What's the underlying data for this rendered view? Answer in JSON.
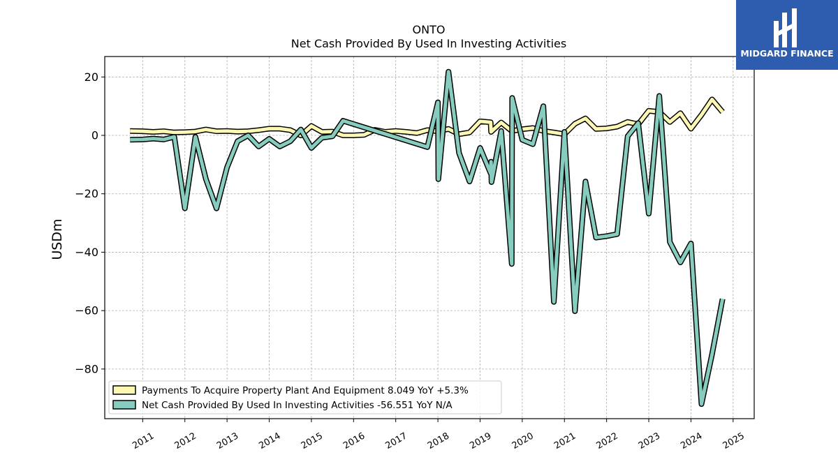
{
  "brand": {
    "name": "MIDGARD FINANCE",
    "color": "#2e5cae"
  },
  "chart_data": {
    "type": "line",
    "title": "ONTO",
    "subtitle": "Net Cash Provided By Used In Investing Activities",
    "xlabel": "",
    "ylabel": "USDm",
    "ylim": [
      -97,
      27
    ],
    "xlim": [
      2010.1,
      2025.5
    ],
    "yticks": [
      20,
      0,
      -20,
      -40,
      -60,
      -80
    ],
    "ytick_labels": [
      "20",
      "0",
      "−20",
      "−40",
      "−60",
      "−80"
    ],
    "xticks": [
      "2011",
      "2012",
      "2013",
      "2014",
      "2015",
      "2016",
      "2017",
      "2018",
      "2019",
      "2020",
      "2021",
      "2022",
      "2023",
      "2024",
      "2025"
    ],
    "grid": true,
    "legend_position": "lower-left",
    "series": [
      {
        "name": "Payments To Acquire Property Plant And Equipment",
        "legend_label": "Payments To Acquire Property Plant And Equipment  8.049 YoY +5.3%",
        "color": "#fcf8b4",
        "points": [
          [
            2010.7,
            1.5
          ],
          [
            2011.0,
            1.4
          ],
          [
            2011.25,
            1.2
          ],
          [
            2011.5,
            1.4
          ],
          [
            2011.75,
            1.0
          ],
          [
            2012.0,
            1.1
          ],
          [
            2012.25,
            1.3
          ],
          [
            2012.5,
            2.0
          ],
          [
            2012.75,
            1.4
          ],
          [
            2013.0,
            1.5
          ],
          [
            2013.25,
            1.3
          ],
          [
            2013.5,
            1.4
          ],
          [
            2013.75,
            1.8
          ],
          [
            2014.0,
            2.3
          ],
          [
            2014.25,
            2.3
          ],
          [
            2014.5,
            1.8
          ],
          [
            2014.75,
            0.0
          ],
          [
            2015.0,
            3.2
          ],
          [
            2015.25,
            1.2
          ],
          [
            2015.5,
            1.3
          ],
          [
            2015.75,
            0.0
          ],
          [
            2016.0,
            0.0
          ],
          [
            2016.25,
            0.2
          ],
          [
            2016.5,
            1.9
          ],
          [
            2016.75,
            1.2
          ],
          [
            2017.0,
            1.5
          ],
          [
            2017.25,
            1.2
          ],
          [
            2017.5,
            0.8
          ],
          [
            2017.75,
            1.8
          ],
          [
            2018.0,
            1.4
          ],
          [
            2018.25,
            2.2
          ],
          [
            2018.5,
            0.4
          ],
          [
            2018.75,
            1.0
          ],
          [
            2019.0,
            4.8
          ],
          [
            2019.25,
            4.5
          ],
          [
            2019.26,
            1.2
          ],
          [
            2019.5,
            4.4
          ],
          [
            2019.75,
            1.5
          ],
          [
            2020.0,
            2.1
          ],
          [
            2020.25,
            2.5
          ],
          [
            2020.5,
            1.5
          ],
          [
            2020.75,
            1.0
          ],
          [
            2021.0,
            0.4
          ],
          [
            2021.25,
            4.0
          ],
          [
            2021.5,
            5.8
          ],
          [
            2021.75,
            2.2
          ],
          [
            2022.0,
            2.4
          ],
          [
            2022.25,
            3.0
          ],
          [
            2022.5,
            4.6
          ],
          [
            2022.75,
            3.8
          ],
          [
            2023.0,
            8.4
          ],
          [
            2023.25,
            8.0
          ],
          [
            2023.5,
            4.6
          ],
          [
            2023.75,
            7.6
          ],
          [
            2024.0,
            2.3
          ],
          [
            2024.25,
            7.0
          ],
          [
            2024.5,
            12.3
          ],
          [
            2024.75,
            8.0
          ]
        ]
      },
      {
        "name": "Net Cash Provided By Used In Investing Activities",
        "legend_label": "Net Cash Provided By Used In Investing Activities  -56.551 YoY N/A",
        "color": "#86cdbf",
        "points": [
          [
            2010.7,
            -1.5
          ],
          [
            2011.0,
            -1.4
          ],
          [
            2011.25,
            -1.1
          ],
          [
            2011.5,
            -1.4
          ],
          [
            2011.75,
            -0.5
          ],
          [
            2012.0,
            -25.0
          ],
          [
            2012.25,
            -0.5
          ],
          [
            2012.5,
            -15.0
          ],
          [
            2012.75,
            -25.0
          ],
          [
            2013.0,
            -11.0
          ],
          [
            2013.25,
            -2.0
          ],
          [
            2013.5,
            0.0
          ],
          [
            2013.75,
            -3.8
          ],
          [
            2014.0,
            -1.2
          ],
          [
            2014.25,
            -3.8
          ],
          [
            2014.5,
            -2.0
          ],
          [
            2014.75,
            2.0
          ],
          [
            2015.0,
            -4.3
          ],
          [
            2015.25,
            -0.8
          ],
          [
            2015.5,
            -0.3
          ],
          [
            2015.75,
            5.0
          ],
          [
            2017.75,
            -4.0
          ],
          [
            2018.0,
            11.3
          ],
          [
            2018.01,
            -15.0
          ],
          [
            2018.25,
            21.8
          ],
          [
            2018.5,
            -6.0
          ],
          [
            2018.75,
            -15.8
          ],
          [
            2019.0,
            -4.3
          ],
          [
            2019.25,
            -13.0
          ],
          [
            2019.26,
            -9.0
          ],
          [
            2019.27,
            -16.0
          ],
          [
            2019.5,
            1.5
          ],
          [
            2019.75,
            -44.0
          ],
          [
            2019.76,
            12.8
          ],
          [
            2020.0,
            -1.5
          ],
          [
            2020.25,
            -3.0
          ],
          [
            2020.5,
            10.0
          ],
          [
            2020.75,
            -57.0
          ],
          [
            2021.0,
            1.2
          ],
          [
            2021.25,
            -60.2
          ],
          [
            2021.5,
            -15.8
          ],
          [
            2021.75,
            -35.0
          ],
          [
            2022.0,
            -34.5
          ],
          [
            2022.25,
            -33.8
          ],
          [
            2022.5,
            -0.3
          ],
          [
            2022.75,
            4.2
          ],
          [
            2023.0,
            -26.8
          ],
          [
            2023.25,
            13.5
          ],
          [
            2023.5,
            -36.5
          ],
          [
            2023.75,
            -43.5
          ],
          [
            2024.0,
            -37.0
          ],
          [
            2024.25,
            -92.0
          ],
          [
            2024.5,
            -75.0
          ],
          [
            2024.75,
            -56.0
          ]
        ]
      }
    ]
  }
}
